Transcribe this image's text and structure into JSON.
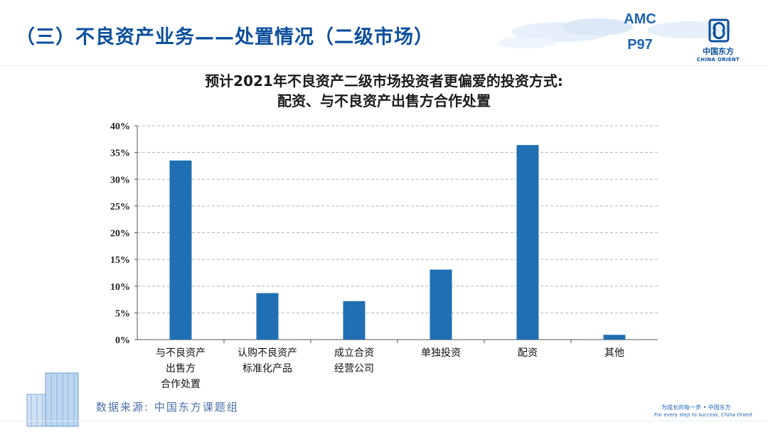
{
  "header": {
    "title": "（三）不良资产业务——处置情况（二级市场）",
    "amc_label": "AMC",
    "page_label": "P97",
    "logo_cn": "中国东方",
    "logo_en": "CHINA ORIENT"
  },
  "chart_title_line1": "预计2021年不良资产二级市场投资者更偏爱的投资方式:",
  "chart_title_line2": "配资、与不良资产出售方合作处置",
  "chart_data": {
    "type": "bar",
    "title": "预计2021年不良资产二级市场投资者更偏爱的投资方式: 配资、与不良资产出售方合作处置",
    "categories": [
      "与不良资产出售方合作处置",
      "认购不良资产标准化产品",
      "成立合资经营公司",
      "单独投资",
      "配资",
      "其他"
    ],
    "category_lines": [
      [
        "与不良资产",
        "出售方",
        "合作处置"
      ],
      [
        "认购不良资产",
        "标准化产品"
      ],
      [
        "成立合资",
        "经营公司"
      ],
      [
        "单独投资"
      ],
      [
        "配资"
      ],
      [
        "其他"
      ]
    ],
    "values": [
      33.5,
      8.7,
      7.2,
      13.1,
      36.4,
      0.9
    ],
    "unit": "%",
    "ylim": [
      0,
      40
    ],
    "yticks": [
      "0%",
      "5%",
      "10%",
      "15%",
      "20%",
      "25%",
      "30%",
      "35%",
      "40%"
    ],
    "grid": true,
    "bar_color": "#1f6fb2"
  },
  "footer": {
    "source": "数据来源: 中国东方课题组",
    "slogan_cn": "为成长的每一步 • 中国东方",
    "slogan_en": "For every step to success, China Orient"
  }
}
